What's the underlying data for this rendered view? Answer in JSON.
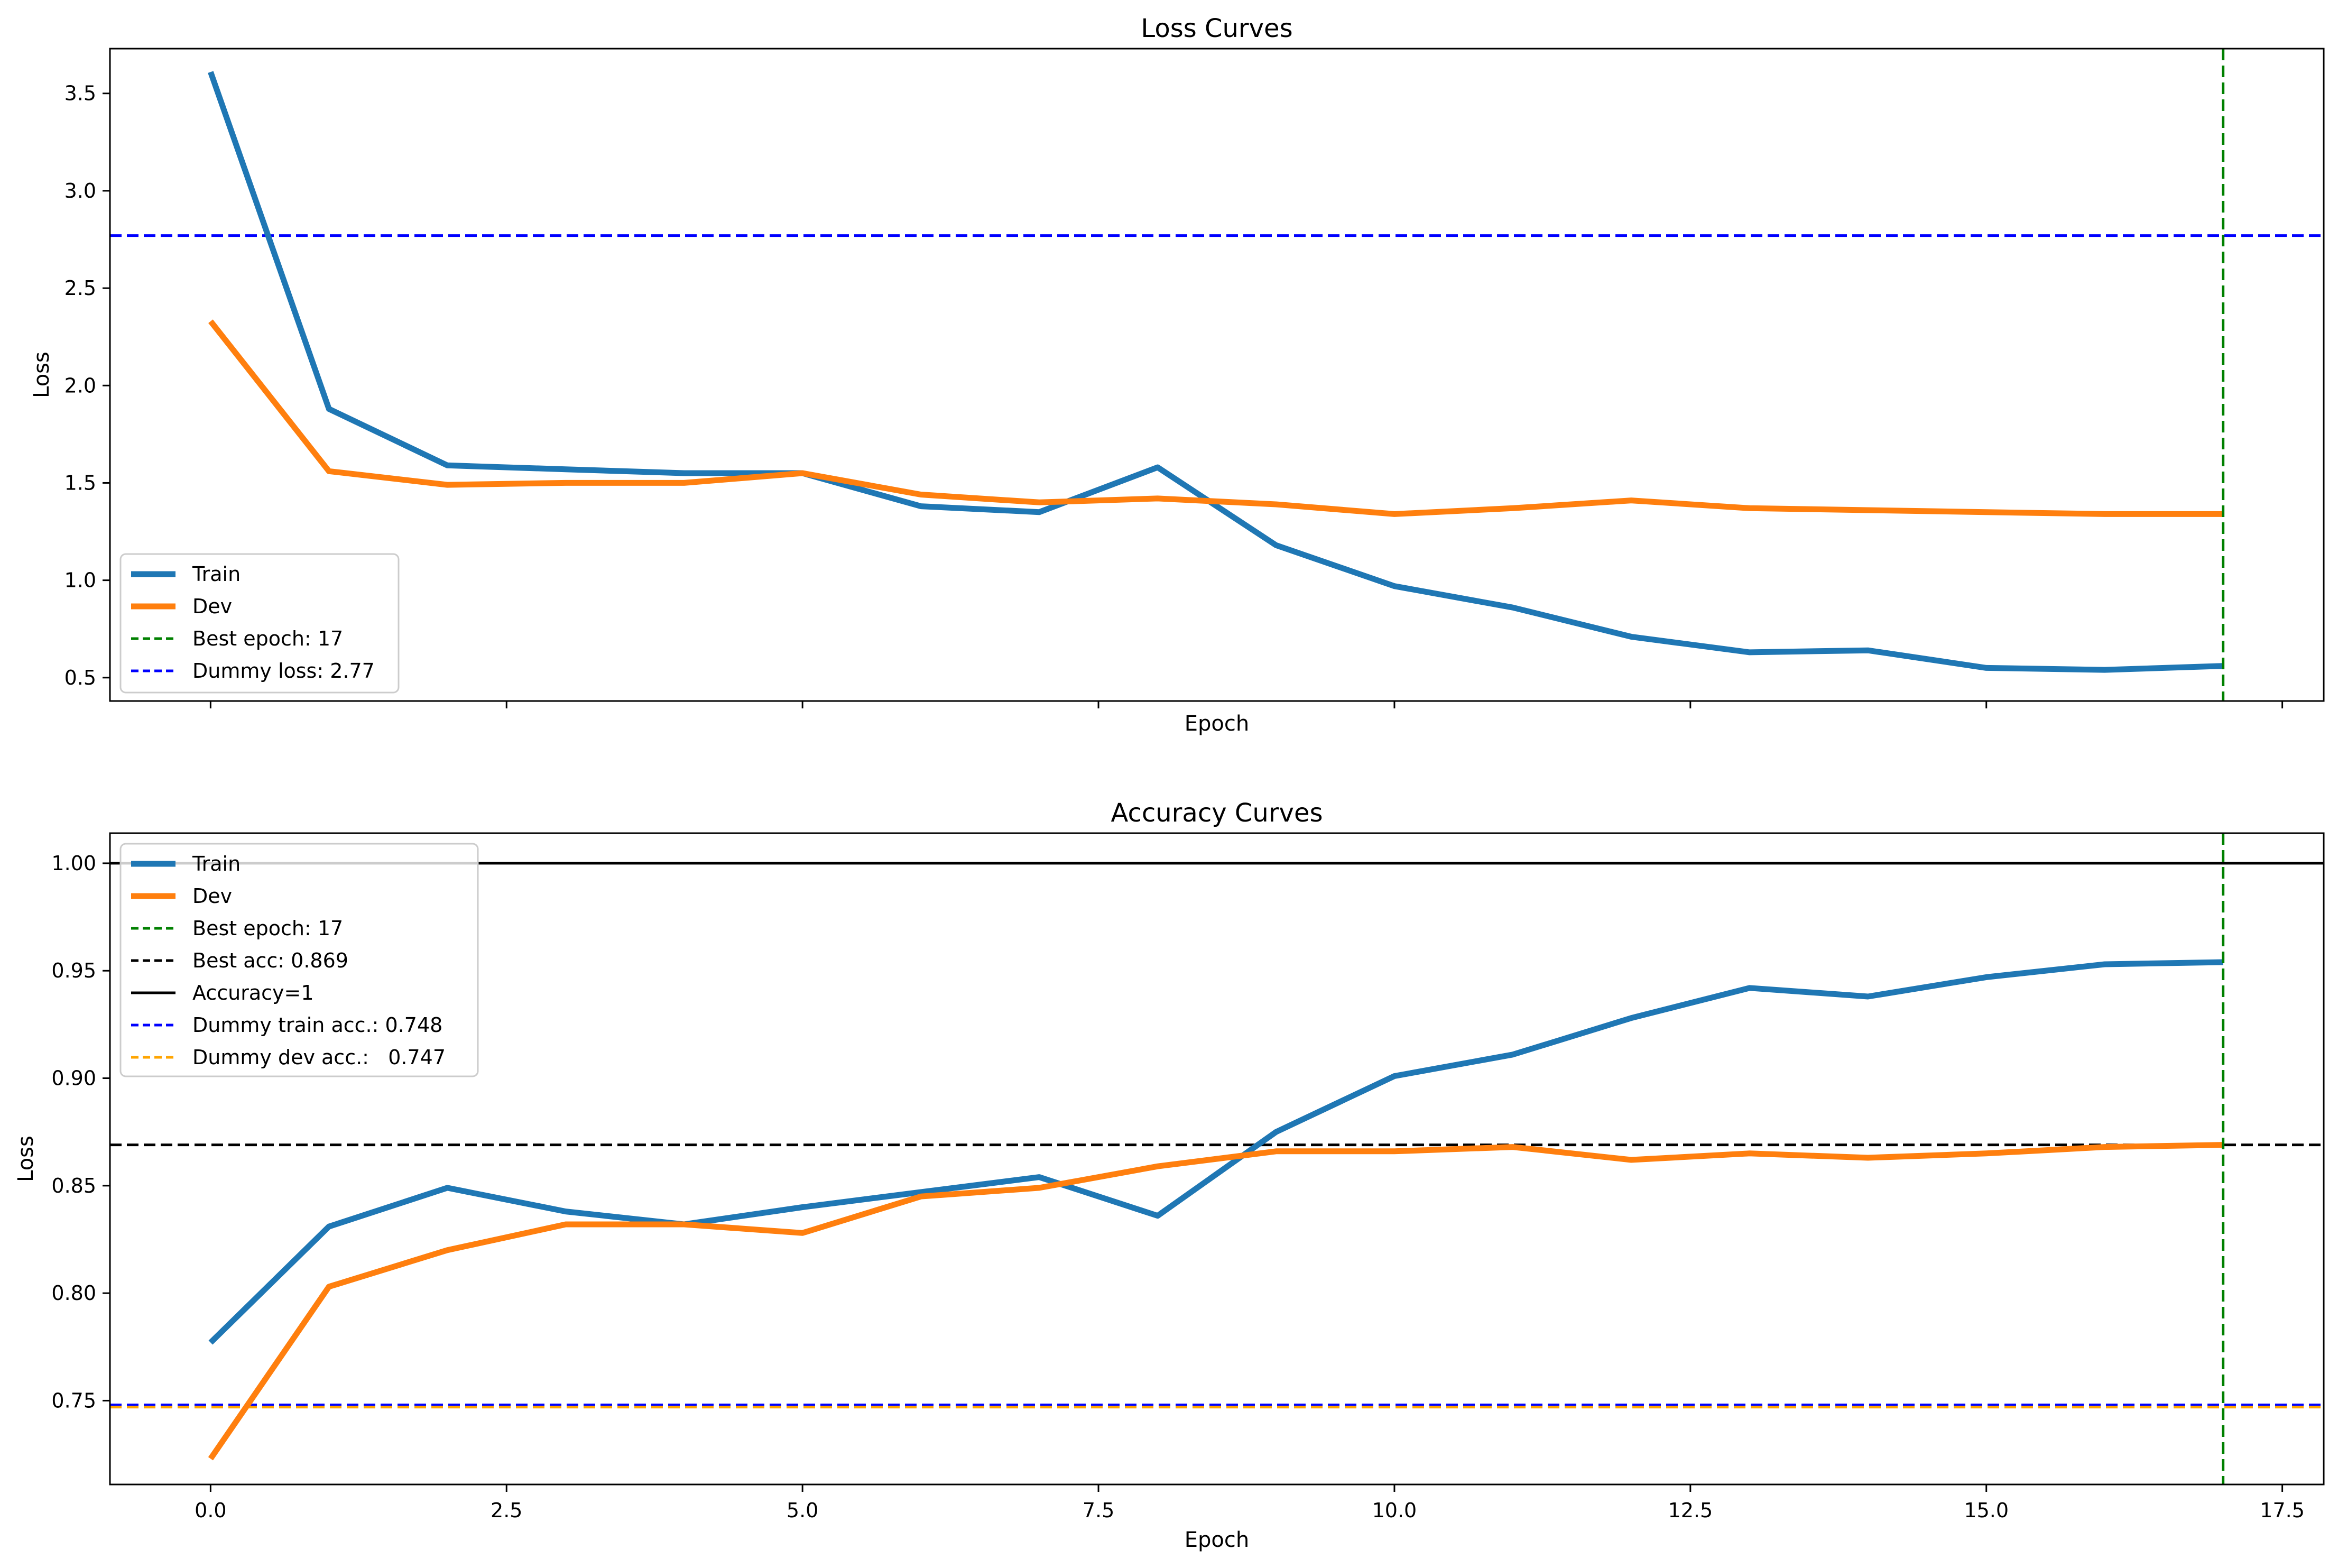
{
  "chart_data": [
    {
      "type": "line",
      "title": "Loss Curves",
      "xlabel": "Epoch",
      "ylabel": "Loss",
      "xlim": [
        -0.85,
        17.85
      ],
      "ylim": [
        0.38,
        3.73
      ],
      "xticks": [
        0,
        2.5,
        5,
        7.5,
        10,
        12.5,
        15,
        17.5
      ],
      "xtick_labels_shown": false,
      "yticks": [
        0.5,
        1.0,
        1.5,
        2.0,
        2.5,
        3.0,
        3.5
      ],
      "ytick_labels": [
        "0.5",
        "1.0",
        "1.5",
        "2.0",
        "2.5",
        "3.0",
        "3.5"
      ],
      "x": [
        0,
        1,
        2,
        3,
        4,
        5,
        6,
        7,
        8,
        9,
        10,
        11,
        12,
        13,
        14,
        15,
        16,
        17
      ],
      "series": [
        {
          "name": "Train",
          "color": "#1f77b4",
          "values": [
            3.61,
            1.88,
            1.59,
            1.57,
            1.55,
            1.55,
            1.38,
            1.35,
            1.58,
            1.18,
            0.97,
            0.86,
            0.71,
            0.63,
            0.64,
            0.55,
            0.54,
            0.56
          ]
        },
        {
          "name": "Dev",
          "color": "#ff7f0e",
          "values": [
            2.33,
            1.56,
            1.49,
            1.5,
            1.5,
            1.55,
            1.44,
            1.4,
            1.42,
            1.39,
            1.34,
            1.37,
            1.41,
            1.37,
            1.36,
            1.35,
            1.34,
            1.34
          ]
        }
      ],
      "reference_lines": [
        {
          "label": "Best epoch: 17",
          "orientation": "vertical",
          "value": 17,
          "color": "#008000",
          "style": "dashed"
        },
        {
          "label": "Dummy loss: 2.77",
          "orientation": "horizontal",
          "value": 2.77,
          "color": "#0000ff",
          "style": "dashed"
        }
      ],
      "legend_position": "lower-left"
    },
    {
      "type": "line",
      "title": "Accuracy Curves",
      "xlabel": "Epoch",
      "ylabel": "Loss",
      "xlim": [
        -0.85,
        17.85
      ],
      "ylim": [
        0.711,
        1.014
      ],
      "xticks": [
        0,
        2.5,
        5,
        7.5,
        10,
        12.5,
        15,
        17.5
      ],
      "xtick_labels": [
        "0.0",
        "2.5",
        "5.0",
        "7.5",
        "10.0",
        "12.5",
        "15.0",
        "17.5"
      ],
      "yticks": [
        0.75,
        0.8,
        0.85,
        0.9,
        0.95,
        1.0
      ],
      "ytick_labels": [
        "0.75",
        "0.80",
        "0.85",
        "0.90",
        "0.95",
        "1.00"
      ],
      "x": [
        0,
        1,
        2,
        3,
        4,
        5,
        6,
        7,
        8,
        9,
        10,
        11,
        12,
        13,
        14,
        15,
        16,
        17
      ],
      "series": [
        {
          "name": "Train",
          "color": "#1f77b4",
          "values": [
            0.777,
            0.831,
            0.849,
            0.838,
            0.832,
            0.84,
            0.847,
            0.854,
            0.836,
            0.875,
            0.901,
            0.911,
            0.928,
            0.942,
            0.938,
            0.947,
            0.953,
            0.954
          ]
        },
        {
          "name": "Dev",
          "color": "#ff7f0e",
          "values": [
            0.723,
            0.803,
            0.82,
            0.832,
            0.832,
            0.828,
            0.845,
            0.849,
            0.859,
            0.866,
            0.866,
            0.868,
            0.862,
            0.865,
            0.863,
            0.865,
            0.868,
            0.869
          ]
        }
      ],
      "reference_lines": [
        {
          "label": "Best epoch: 17",
          "orientation": "vertical",
          "value": 17,
          "color": "#008000",
          "style": "dashed"
        },
        {
          "label": "Best acc: 0.869",
          "orientation": "horizontal",
          "value": 0.869,
          "color": "#000000",
          "style": "dashed"
        },
        {
          "label": "Accuracy=1",
          "orientation": "horizontal",
          "value": 1.0,
          "color": "#000000",
          "style": "solid"
        },
        {
          "label": "Dummy train acc.: 0.748",
          "orientation": "horizontal",
          "value": 0.748,
          "color": "#0000ff",
          "style": "dashed"
        },
        {
          "label": "Dummy dev acc.:   0.747",
          "orientation": "horizontal",
          "value": 0.747,
          "color": "#ffa500",
          "style": "dashed"
        }
      ],
      "legend_position": "upper-left"
    }
  ]
}
